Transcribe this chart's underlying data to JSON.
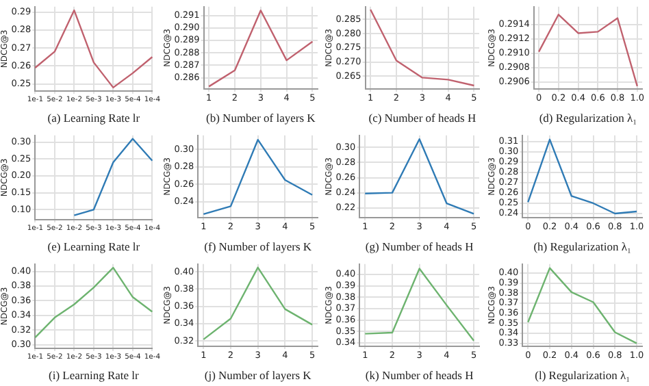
{
  "chart_data": [
    {
      "type": "line",
      "xlabel": "(a) Learning Rate lr",
      "ylabel": "NDCG@3",
      "categories": [
        "1e-1",
        "5e-2",
        "1e-2",
        "5e-3",
        "1e-3",
        "5e-4",
        "1e-4"
      ],
      "series": [
        {
          "color": "#c0616e",
          "values": [
            0.259,
            0.268,
            0.291,
            0.262,
            0.248,
            0.256,
            0.265
          ]
        }
      ],
      "ylim": [
        0.246,
        0.293
      ],
      "yticks": [
        0.25,
        0.26,
        0.27,
        0.28,
        0.29
      ],
      "grid": true
    },
    {
      "type": "line",
      "xlabel": "(b) Number of layers K",
      "ylabel": "NDCG@3",
      "x": [
        1,
        2,
        3,
        4,
        5
      ],
      "series": [
        {
          "color": "#c0616e",
          "values": [
            0.2853,
            0.2866,
            0.2914,
            0.2874,
            0.2889
          ]
        }
      ],
      "xlim": [
        0.8,
        5.2
      ],
      "xticks": [
        1,
        2,
        3,
        4,
        5
      ],
      "ylim": [
        0.2851,
        0.2917
      ],
      "yticks": [
        0.286,
        0.287,
        0.288,
        0.289,
        {
          "value": 0.29,
          "label": "0.290"
        },
        0.291
      ],
      "grid": true
    },
    {
      "type": "line",
      "xlabel": "(c) Number of heads H",
      "ylabel": "NDCG@3",
      "x": [
        1,
        2,
        3,
        4,
        5
      ],
      "series": [
        {
          "color": "#c0616e",
          "values": [
            0.2885,
            0.2705,
            0.2645,
            0.2638,
            0.2617
          ]
        }
      ],
      "xlim": [
        0.8,
        5.2
      ],
      "xticks": [
        1,
        2,
        3,
        4,
        5
      ],
      "ylim": [
        0.2605,
        0.2895
      ],
      "yticks": [
        0.265,
        {
          "value": 0.27,
          "label": "0.270"
        },
        0.275,
        {
          "value": 0.28,
          "label": "0.280"
        },
        0.285
      ],
      "grid": true
    },
    {
      "type": "line",
      "xlabel": "(d) Regularization λ₁",
      "ylabel": "NDCG@3",
      "x": [
        0,
        0.2,
        0.4,
        0.6,
        0.8,
        1.0
      ],
      "series": [
        {
          "color": "#c0616e",
          "values": [
            0.29102,
            0.29154,
            0.29128,
            0.2913,
            0.29149,
            0.29054
          ]
        }
      ],
      "xlim": [
        -0.05,
        1.05
      ],
      "xticks": [
        {
          "value": 0,
          "label": "0"
        },
        {
          "value": 0.2,
          "label": "0.2"
        },
        {
          "value": 0.4,
          "label": "0.4"
        },
        {
          "value": 0.6,
          "label": "0.6"
        },
        {
          "value": 0.8,
          "label": "0.8"
        },
        {
          "value": 1,
          "label": "1.0"
        }
      ],
      "ylim": [
        0.2905,
        0.29165
      ],
      "yticks": [
        {
          "value": 0.2906,
          "label": "0.2906"
        },
        {
          "value": 0.2908,
          "label": "0.2908"
        },
        {
          "value": 0.291,
          "label": "0.2910"
        },
        {
          "value": 0.2912,
          "label": "0.2912"
        },
        {
          "value": 0.2914,
          "label": "0.2914"
        }
      ],
      "grid": true
    },
    {
      "type": "line",
      "xlabel": "(e) Learning Rate lr",
      "ylabel": "NDCG@3",
      "categories": [
        "1e-1",
        "5e-2",
        "1e-2",
        "5e-3",
        "1e-3",
        "5e-4",
        "1e-4"
      ],
      "series": [
        {
          "color": "#2f7bb5",
          "values": [
            null,
            null,
            0.083,
            0.1,
            0.24,
            0.31,
            0.245
          ]
        }
      ],
      "ylim": [
        0.07,
        0.32
      ],
      "yticks": [
        {
          "value": 0.1,
          "label": "0.10"
        },
        {
          "value": 0.15,
          "label": "0.15"
        },
        {
          "value": 0.2,
          "label": "0.20"
        },
        {
          "value": 0.25,
          "label": "0.25"
        },
        {
          "value": 0.3,
          "label": "0.30"
        }
      ],
      "grid": true
    },
    {
      "type": "line",
      "xlabel": "(f) Number of layers K",
      "ylabel": "NDCG@3",
      "x": [
        1,
        2,
        3,
        4,
        5
      ],
      "series": [
        {
          "color": "#2f7bb5",
          "values": [
            0.226,
            0.235,
            0.311,
            0.265,
            0.248
          ]
        }
      ],
      "xlim": [
        0.8,
        5.2
      ],
      "xticks": [
        1,
        2,
        3,
        4,
        5
      ],
      "ylim": [
        0.222,
        0.316
      ],
      "yticks": [
        0.24,
        0.26,
        0.28,
        {
          "value": 0.3,
          "label": "0.30"
        }
      ],
      "grid": true
    },
    {
      "type": "line",
      "xlabel": "(g) Number of heads H",
      "ylabel": "NDCG@3",
      "x": [
        1,
        2,
        3,
        4,
        5
      ],
      "series": [
        {
          "color": "#2f7bb5",
          "values": [
            0.239,
            0.24,
            0.311,
            0.226,
            0.212
          ]
        }
      ],
      "xlim": [
        0.8,
        5.2
      ],
      "xticks": [
        1,
        2,
        3,
        4,
        5
      ],
      "ylim": [
        0.207,
        0.316
      ],
      "yticks": [
        0.22,
        0.24,
        0.26,
        0.28,
        {
          "value": 0.3,
          "label": "0.30"
        }
      ],
      "grid": true
    },
    {
      "type": "line",
      "xlabel": "(h) Regularization λ₁",
      "ylabel": "NDCG@3",
      "x": [
        0,
        0.2,
        0.4,
        0.6,
        0.8,
        1.0
      ],
      "series": [
        {
          "color": "#2f7bb5",
          "values": [
            0.251,
            0.312,
            0.257,
            0.25,
            0.24,
            0.242
          ]
        }
      ],
      "xlim": [
        -0.05,
        1.05
      ],
      "xticks": [
        {
          "value": 0,
          "label": "0"
        },
        {
          "value": 0.2,
          "label": "0.2"
        },
        {
          "value": 0.4,
          "label": "0.4"
        },
        {
          "value": 0.6,
          "label": "0.6"
        },
        {
          "value": 0.8,
          "label": "0.8"
        },
        {
          "value": 1,
          "label": "1.0"
        }
      ],
      "ylim": [
        0.236,
        0.316
      ],
      "yticks": [
        {
          "value": 0.24,
          "label": "0.24"
        },
        {
          "value": 0.25,
          "label": "0.25"
        },
        {
          "value": 0.26,
          "label": "0.26"
        },
        {
          "value": 0.27,
          "label": "0.27"
        },
        {
          "value": 0.28,
          "label": "0.28"
        },
        {
          "value": 0.29,
          "label": "0.29"
        },
        {
          "value": 0.3,
          "label": "0.30"
        },
        {
          "value": 0.31,
          "label": "0.31"
        }
      ],
      "grid": true
    },
    {
      "type": "line",
      "xlabel": "(i) Learning Rate lr",
      "ylabel": "NDCG@3",
      "categories": [
        "1e-1",
        "5e-2",
        "1e-2",
        "5e-3",
        "1e-3",
        "5e-4",
        "1e-4"
      ],
      "series": [
        {
          "color": "#6db36f",
          "values": [
            0.31,
            0.337,
            0.355,
            0.378,
            0.405,
            0.365,
            0.345
          ]
        }
      ],
      "ylim": [
        0.295,
        0.41
      ],
      "yticks": [
        {
          "value": 0.3,
          "label": "0.30"
        },
        {
          "value": 0.32,
          "label": "0.32"
        },
        {
          "value": 0.34,
          "label": "0.34"
        },
        {
          "value": 0.36,
          "label": "0.36"
        },
        {
          "value": 0.38,
          "label": "0.38"
        },
        {
          "value": 0.4,
          "label": "0.40"
        }
      ],
      "grid": true
    },
    {
      "type": "line",
      "xlabel": "(j) Number of layers K",
      "ylabel": "NDCG@3",
      "x": [
        1,
        2,
        3,
        4,
        5
      ],
      "series": [
        {
          "color": "#6db36f",
          "values": [
            0.322,
            0.346,
            0.405,
            0.357,
            0.339
          ]
        }
      ],
      "xlim": [
        0.8,
        5.2
      ],
      "xticks": [
        1,
        2,
        3,
        4,
        5
      ],
      "ylim": [
        0.314,
        0.409
      ],
      "yticks": [
        0.32,
        0.34,
        0.36,
        0.38,
        {
          "value": 0.4,
          "label": "0.40"
        }
      ],
      "grid": true
    },
    {
      "type": "line",
      "xlabel": "(k) Number of heads H",
      "ylabel": "NDCG@3",
      "x": [
        1,
        2,
        3,
        4,
        5
      ],
      "series": [
        {
          "color": "#6db36f",
          "values": [
            0.348,
            0.349,
            0.405,
            0.373,
            0.342
          ]
        }
      ],
      "xlim": [
        0.8,
        5.2
      ],
      "xticks": [
        1,
        2,
        3,
        4,
        5
      ],
      "ylim": [
        0.337,
        0.409
      ],
      "yticks": [
        0.34,
        0.35,
        0.36,
        0.37,
        0.38,
        0.39,
        {
          "value": 0.4,
          "label": "0.40"
        }
      ],
      "grid": true
    },
    {
      "type": "line",
      "xlabel": "(l) Regularization λ₁",
      "ylabel": "NDCG@3",
      "x": [
        0,
        0.2,
        0.4,
        0.6,
        0.8,
        1.0
      ],
      "series": [
        {
          "color": "#6db36f",
          "values": [
            0.351,
            0.405,
            0.381,
            0.371,
            0.341,
            0.33
          ]
        }
      ],
      "xlim": [
        -0.05,
        1.05
      ],
      "xticks": [
        {
          "value": 0,
          "label": "0"
        },
        {
          "value": 0.2,
          "label": "0.2"
        },
        {
          "value": 0.4,
          "label": "0.4"
        },
        {
          "value": 0.6,
          "label": "0.6"
        },
        {
          "value": 0.8,
          "label": "0.8"
        },
        {
          "value": 1,
          "label": "1.0"
        }
      ],
      "ylim": [
        0.327,
        0.409
      ],
      "yticks": [
        0.33,
        0.34,
        0.35,
        0.36,
        0.37,
        0.38,
        0.39,
        {
          "value": 0.4,
          "label": "0.40"
        }
      ],
      "grid": true
    }
  ]
}
